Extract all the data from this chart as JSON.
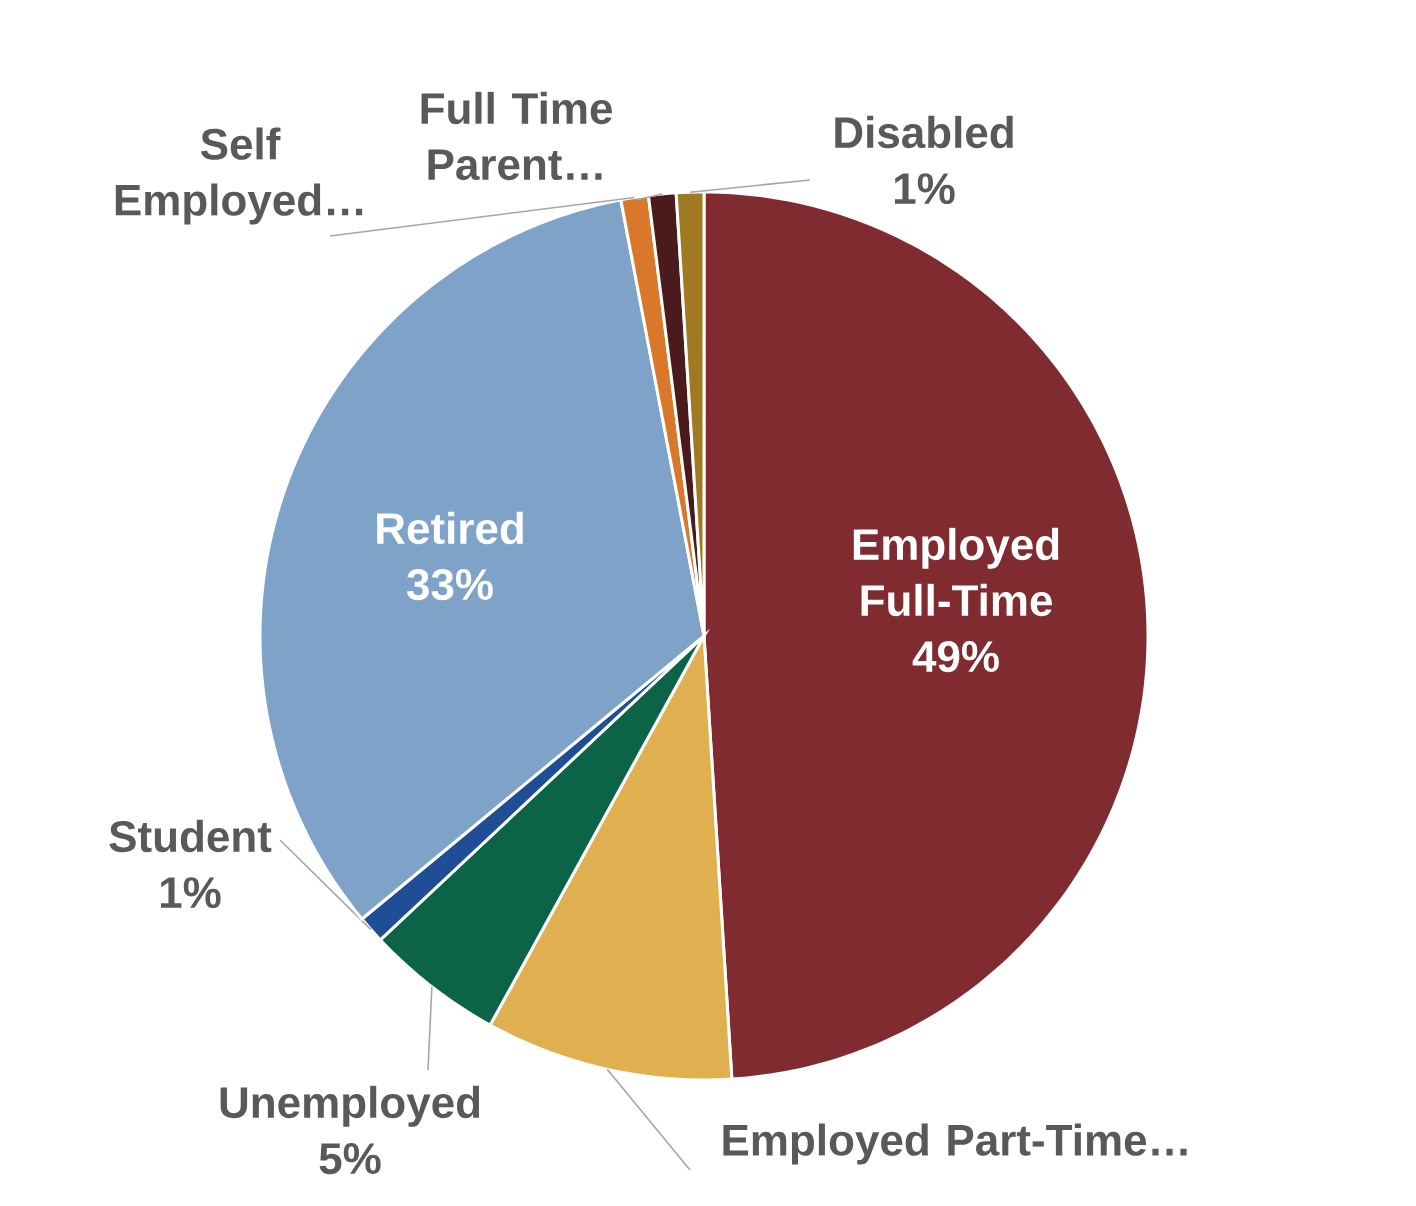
{
  "chart_data": {
    "type": "pie",
    "categories": [
      "Employed Full-Time",
      "Employed Part-Time…",
      "Unemployed",
      "Student",
      "Retired",
      "Self Employed…",
      "Full Time Parent…",
      "Disabled"
    ],
    "values": [
      49,
      9,
      5,
      1,
      33,
      1,
      1,
      1
    ],
    "colors": [
      "#7f2b2f",
      "#e0b050",
      "#0b6348",
      "#1f4e96",
      "#7fa3c8",
      "#d9782a",
      "#4a1a1c",
      "#a07a20"
    ],
    "value_labels": [
      "49%",
      null,
      "5%",
      "1%",
      "33%",
      null,
      null,
      "1%"
    ]
  }
}
